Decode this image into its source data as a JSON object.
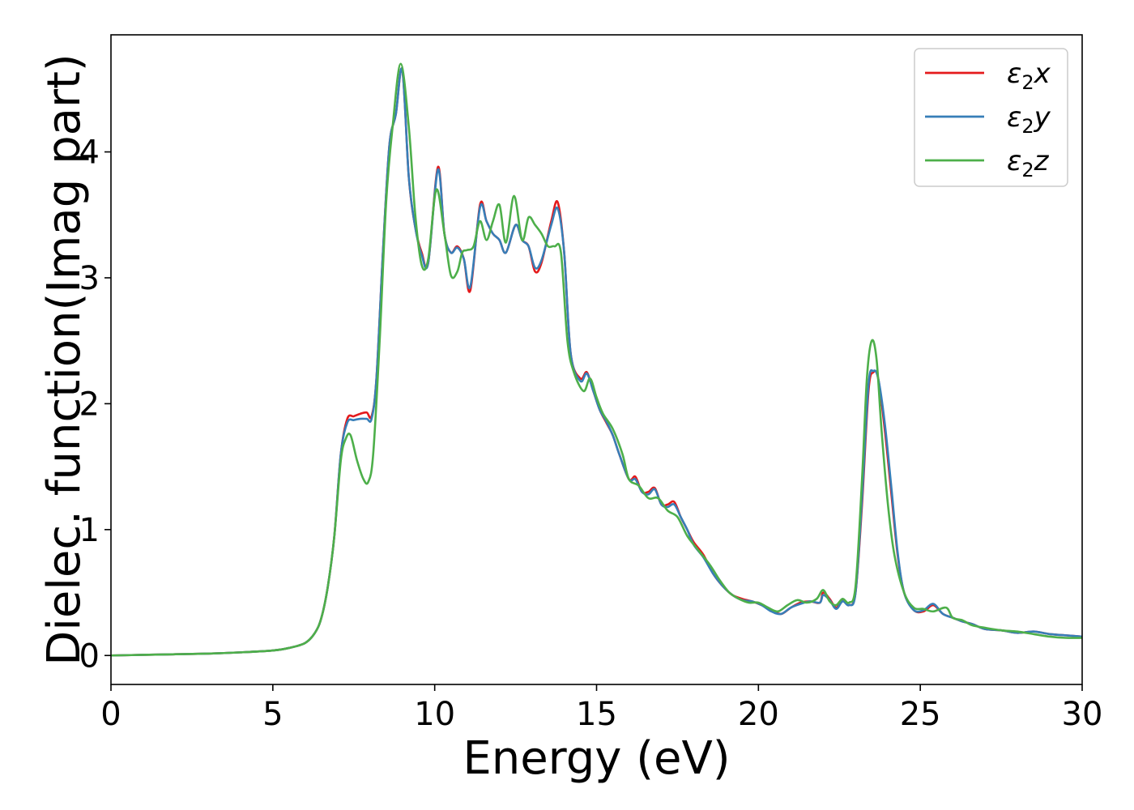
{
  "chart_data": {
    "type": "line",
    "xlabel": "Energy (eV)",
    "ylabel": "Dielec. function(Imag part)",
    "xlim": [
      0,
      30
    ],
    "ylim": [
      -0.23,
      4.93
    ],
    "xticks": [
      0,
      5,
      10,
      15,
      20,
      25,
      30
    ],
    "yticks": [
      0,
      1,
      2,
      3,
      4
    ],
    "grid": false,
    "legend_position": "top-right",
    "series": [
      {
        "name": "ε₂x",
        "legend_main": "ε",
        "legend_sub": "2",
        "legend_suffix": "x",
        "color": "#e41a1c",
        "x": [
          0,
          1,
          2,
          3,
          4,
          5,
          5.5,
          6,
          6.3,
          6.5,
          6.7,
          6.9,
          7.1,
          7.3,
          7.5,
          7.7,
          7.9,
          8.05,
          8.2,
          8.4,
          8.6,
          8.8,
          9.0,
          9.2,
          9.4,
          9.6,
          9.8,
          10.1,
          10.3,
          10.5,
          10.7,
          10.9,
          11.1,
          11.4,
          11.6,
          11.8,
          12.0,
          12.2,
          12.5,
          12.7,
          12.9,
          13.1,
          13.3,
          13.6,
          13.8,
          14.0,
          14.2,
          14.5,
          14.7,
          14.9,
          15.1,
          15.3,
          15.5,
          15.7,
          16.0,
          16.2,
          16.4,
          16.6,
          16.8,
          17.0,
          17.2,
          17.4,
          17.6,
          17.8,
          18.0,
          18.3,
          18.6,
          18.9,
          19.2,
          19.5,
          19.8,
          20.1,
          20.4,
          20.7,
          21.0,
          21.3,
          21.6,
          21.9,
          22.0,
          22.2,
          22.4,
          22.6,
          22.8,
          23.0,
          23.2,
          23.4,
          23.55,
          23.7,
          23.9,
          24.1,
          24.3,
          24.5,
          24.8,
          25.1,
          25.4,
          25.7,
          26.0,
          26.3,
          26.6,
          27.0,
          27.5,
          28.0,
          28.5,
          29.0,
          29.5,
          30.0
        ],
        "y": [
          0.0,
          0.005,
          0.01,
          0.015,
          0.025,
          0.04,
          0.06,
          0.1,
          0.18,
          0.3,
          0.55,
          0.95,
          1.6,
          1.88,
          1.9,
          1.92,
          1.93,
          1.9,
          2.2,
          3.2,
          4.05,
          4.3,
          4.65,
          3.8,
          3.4,
          3.2,
          3.12,
          3.88,
          3.35,
          3.2,
          3.25,
          3.15,
          2.9,
          3.58,
          3.45,
          3.35,
          3.3,
          3.2,
          3.42,
          3.3,
          3.25,
          3.05,
          3.12,
          3.45,
          3.6,
          3.2,
          2.4,
          2.2,
          2.25,
          2.1,
          1.95,
          1.85,
          1.75,
          1.6,
          1.4,
          1.42,
          1.3,
          1.3,
          1.33,
          1.2,
          1.2,
          1.22,
          1.1,
          1.0,
          0.9,
          0.8,
          0.65,
          0.55,
          0.48,
          0.45,
          0.43,
          0.4,
          0.36,
          0.33,
          0.38,
          0.42,
          0.43,
          0.42,
          0.5,
          0.45,
          0.38,
          0.44,
          0.4,
          0.5,
          1.2,
          2.1,
          2.25,
          2.2,
          1.8,
          1.3,
          0.8,
          0.5,
          0.36,
          0.35,
          0.4,
          0.33,
          0.3,
          0.27,
          0.25,
          0.21,
          0.2,
          0.18,
          0.19,
          0.17,
          0.16,
          0.15
        ]
      },
      {
        "name": "ε₂y",
        "legend_main": "ε",
        "legend_sub": "2",
        "legend_suffix": "y",
        "color": "#377eb8",
        "x": [
          0,
          1,
          2,
          3,
          4,
          5,
          5.5,
          6,
          6.3,
          6.5,
          6.7,
          6.9,
          7.1,
          7.3,
          7.5,
          7.7,
          7.9,
          8.05,
          8.2,
          8.4,
          8.6,
          8.8,
          9.0,
          9.2,
          9.4,
          9.6,
          9.8,
          10.1,
          10.3,
          10.5,
          10.7,
          10.9,
          11.1,
          11.4,
          11.6,
          11.8,
          12.0,
          12.2,
          12.5,
          12.7,
          12.9,
          13.1,
          13.3,
          13.6,
          13.8,
          14.0,
          14.2,
          14.5,
          14.7,
          14.9,
          15.1,
          15.3,
          15.5,
          15.7,
          16.0,
          16.2,
          16.4,
          16.6,
          16.8,
          17.0,
          17.2,
          17.4,
          17.6,
          17.8,
          18.0,
          18.3,
          18.6,
          18.9,
          19.2,
          19.5,
          19.8,
          20.1,
          20.4,
          20.7,
          21.0,
          21.3,
          21.6,
          21.9,
          22.0,
          22.2,
          22.4,
          22.6,
          22.8,
          23.0,
          23.2,
          23.4,
          23.55,
          23.7,
          23.9,
          24.1,
          24.3,
          24.5,
          24.8,
          25.1,
          25.4,
          25.7,
          26.0,
          26.3,
          26.6,
          27.0,
          27.5,
          28.0,
          28.5,
          29.0,
          29.5,
          30.0
        ],
        "y": [
          0.0,
          0.005,
          0.01,
          0.015,
          0.025,
          0.04,
          0.06,
          0.1,
          0.18,
          0.3,
          0.55,
          0.95,
          1.6,
          1.85,
          1.87,
          1.88,
          1.88,
          1.88,
          2.2,
          3.2,
          4.05,
          4.3,
          4.65,
          3.8,
          3.4,
          3.18,
          3.12,
          3.86,
          3.35,
          3.2,
          3.24,
          3.15,
          2.93,
          3.56,
          3.45,
          3.35,
          3.3,
          3.2,
          3.42,
          3.3,
          3.25,
          3.08,
          3.14,
          3.42,
          3.55,
          3.2,
          2.4,
          2.18,
          2.24,
          2.1,
          1.95,
          1.86,
          1.75,
          1.6,
          1.4,
          1.4,
          1.3,
          1.28,
          1.32,
          1.2,
          1.18,
          1.2,
          1.1,
          1.0,
          0.88,
          0.78,
          0.65,
          0.55,
          0.48,
          0.44,
          0.43,
          0.4,
          0.35,
          0.33,
          0.38,
          0.41,
          0.43,
          0.42,
          0.48,
          0.44,
          0.37,
          0.43,
          0.4,
          0.5,
          1.25,
          2.15,
          2.26,
          2.2,
          1.85,
          1.35,
          0.82,
          0.5,
          0.36,
          0.36,
          0.41,
          0.33,
          0.3,
          0.27,
          0.25,
          0.21,
          0.2,
          0.18,
          0.19,
          0.17,
          0.16,
          0.15
        ]
      },
      {
        "name": "ε₂z",
        "legend_main": "ε",
        "legend_sub": "2",
        "legend_suffix": "z",
        "color": "#4daf4a",
        "x": [
          0,
          1,
          2,
          3,
          4,
          5,
          5.5,
          6,
          6.3,
          6.5,
          6.7,
          6.9,
          7.1,
          7.25,
          7.4,
          7.6,
          7.8,
          7.95,
          8.1,
          8.3,
          8.5,
          8.7,
          8.95,
          9.2,
          9.4,
          9.6,
          9.8,
          10.05,
          10.3,
          10.5,
          10.7,
          10.85,
          11.0,
          11.2,
          11.4,
          11.6,
          11.8,
          12.0,
          12.2,
          12.45,
          12.7,
          12.9,
          13.1,
          13.3,
          13.5,
          13.7,
          13.9,
          14.1,
          14.3,
          14.6,
          14.8,
          15.0,
          15.2,
          15.5,
          15.8,
          16.0,
          16.3,
          16.6,
          16.9,
          17.2,
          17.5,
          17.8,
          18.1,
          18.5,
          18.8,
          19.1,
          19.4,
          19.7,
          20.0,
          20.3,
          20.6,
          20.9,
          21.2,
          21.5,
          21.8,
          22.0,
          22.2,
          22.4,
          22.6,
          22.8,
          23.0,
          23.2,
          23.35,
          23.5,
          23.65,
          23.8,
          24.0,
          24.2,
          24.5,
          24.8,
          25.1,
          25.4,
          25.8,
          26.0,
          26.3,
          26.6,
          27.0,
          27.5,
          28.0,
          28.5,
          29.0,
          29.5,
          30.0
        ],
        "y": [
          0.0,
          0.005,
          0.01,
          0.015,
          0.025,
          0.04,
          0.06,
          0.1,
          0.18,
          0.3,
          0.55,
          0.95,
          1.55,
          1.72,
          1.75,
          1.55,
          1.4,
          1.38,
          1.6,
          2.5,
          3.6,
          4.2,
          4.7,
          4.2,
          3.5,
          3.1,
          3.15,
          3.7,
          3.35,
          3.02,
          3.05,
          3.2,
          3.22,
          3.25,
          3.45,
          3.3,
          3.45,
          3.58,
          3.28,
          3.65,
          3.3,
          3.48,
          3.42,
          3.35,
          3.25,
          3.25,
          3.2,
          2.5,
          2.25,
          2.1,
          2.2,
          2.05,
          1.92,
          1.8,
          1.6,
          1.4,
          1.35,
          1.25,
          1.25,
          1.15,
          1.1,
          0.95,
          0.85,
          0.72,
          0.6,
          0.5,
          0.45,
          0.42,
          0.42,
          0.38,
          0.35,
          0.4,
          0.44,
          0.42,
          0.45,
          0.52,
          0.43,
          0.4,
          0.45,
          0.42,
          0.55,
          1.4,
          2.2,
          2.5,
          2.35,
          1.8,
          1.2,
          0.8,
          0.5,
          0.38,
          0.37,
          0.35,
          0.38,
          0.3,
          0.28,
          0.24,
          0.22,
          0.2,
          0.19,
          0.17,
          0.15,
          0.14,
          0.14
        ]
      }
    ]
  }
}
